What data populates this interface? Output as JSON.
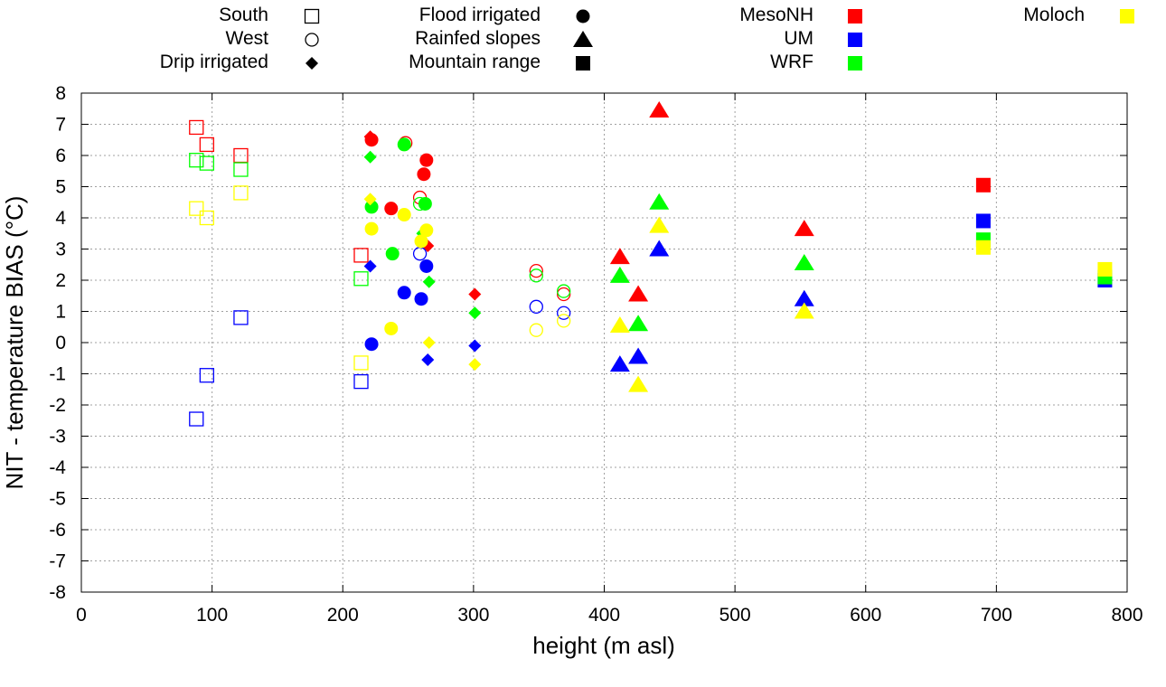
{
  "chart_data": {
    "type": "scatter",
    "title": "",
    "xlabel": "height (m asl)",
    "ylabel": "NIT - temperature BIAS (°C)",
    "xlim": [
      0,
      800
    ],
    "ylim": [
      -8,
      8
    ],
    "xticks": [
      0,
      100,
      200,
      300,
      400,
      500,
      600,
      700,
      800
    ],
    "yticks": [
      -8,
      -7,
      -6,
      -5,
      -4,
      -3,
      -2,
      -1,
      0,
      1,
      2,
      3,
      4,
      5,
      6,
      7,
      8
    ],
    "grid": true,
    "legend": {
      "placement": "top",
      "site_types": [
        {
          "key": "south",
          "label": "South",
          "marker": "open-square"
        },
        {
          "key": "west",
          "label": "West",
          "marker": "open-circle"
        },
        {
          "key": "drip",
          "label": "Drip irrigated",
          "marker": "diamond"
        },
        {
          "key": "flood",
          "label": "Flood irrigated",
          "marker": "circle"
        },
        {
          "key": "rainfed",
          "label": "Rainfed slopes",
          "marker": "triangle"
        },
        {
          "key": "mountain",
          "label": "Mountain range",
          "marker": "square"
        }
      ],
      "models": [
        {
          "key": "mesonh",
          "label": "MesoNH",
          "color": "#ff0000"
        },
        {
          "key": "um",
          "label": "UM",
          "color": "#0000ff"
        },
        {
          "key": "wrf",
          "label": "WRF",
          "color": "#00ff00"
        },
        {
          "key": "moloch",
          "label": "Moloch",
          "color": "#ffff00"
        }
      ]
    },
    "series": [
      {
        "name": "MesoNH",
        "color": "#ff0000",
        "points": [
          {
            "type": "south",
            "x": 88,
            "y": 6.9
          },
          {
            "type": "south",
            "x": 96,
            "y": 6.35
          },
          {
            "type": "south",
            "x": 122,
            "y": 6.0
          },
          {
            "type": "south",
            "x": 214,
            "y": 2.8
          },
          {
            "type": "west",
            "x": 248,
            "y": 6.4
          },
          {
            "type": "west",
            "x": 259,
            "y": 4.65
          },
          {
            "type": "west",
            "x": 348,
            "y": 2.3
          },
          {
            "type": "west",
            "x": 369,
            "y": 1.55
          },
          {
            "type": "drip",
            "x": 221,
            "y": 6.6
          },
          {
            "type": "drip",
            "x": 265,
            "y": 3.1
          },
          {
            "type": "drip",
            "x": 301,
            "y": 1.55
          },
          {
            "type": "flood",
            "x": 222,
            "y": 6.5
          },
          {
            "type": "flood",
            "x": 237,
            "y": 4.3
          },
          {
            "type": "flood",
            "x": 262,
            "y": 5.4
          },
          {
            "type": "flood",
            "x": 264,
            "y": 5.85
          },
          {
            "type": "rainfed",
            "x": 412,
            "y": 2.75
          },
          {
            "type": "rainfed",
            "x": 426,
            "y": 1.55
          },
          {
            "type": "rainfed",
            "x": 442,
            "y": 7.45
          },
          {
            "type": "rainfed",
            "x": 553,
            "y": 3.65
          },
          {
            "type": "mountain",
            "x": 690,
            "y": 5.05
          }
        ]
      },
      {
        "name": "UM",
        "color": "#0000ff",
        "points": [
          {
            "type": "south",
            "x": 88,
            "y": -2.45
          },
          {
            "type": "south",
            "x": 96,
            "y": -1.05
          },
          {
            "type": "south",
            "x": 122,
            "y": 0.8
          },
          {
            "type": "south",
            "x": 214,
            "y": -1.25
          },
          {
            "type": "west",
            "x": 259,
            "y": 2.85
          },
          {
            "type": "west",
            "x": 348,
            "y": 1.15
          },
          {
            "type": "west",
            "x": 369,
            "y": 0.95
          },
          {
            "type": "drip",
            "x": 221,
            "y": 2.45
          },
          {
            "type": "drip",
            "x": 265,
            "y": -0.55
          },
          {
            "type": "drip",
            "x": 301,
            "y": -0.1
          },
          {
            "type": "flood",
            "x": 222,
            "y": -0.05
          },
          {
            "type": "flood",
            "x": 247,
            "y": 1.6
          },
          {
            "type": "flood",
            "x": 260,
            "y": 1.4
          },
          {
            "type": "flood",
            "x": 264,
            "y": 2.45
          },
          {
            "type": "rainfed",
            "x": 412,
            "y": -0.7
          },
          {
            "type": "rainfed",
            "x": 426,
            "y": -0.45
          },
          {
            "type": "rainfed",
            "x": 442,
            "y": 3.0
          },
          {
            "type": "rainfed",
            "x": 553,
            "y": 1.4
          },
          {
            "type": "mountain",
            "x": 690,
            "y": 3.9
          },
          {
            "type": "mountain",
            "x": 783,
            "y": 2.0
          }
        ]
      },
      {
        "name": "WRF",
        "color": "#00ff00",
        "points": [
          {
            "type": "south",
            "x": 88,
            "y": 5.85
          },
          {
            "type": "south",
            "x": 96,
            "y": 5.75
          },
          {
            "type": "south",
            "x": 122,
            "y": 5.55
          },
          {
            "type": "south",
            "x": 214,
            "y": 2.05
          },
          {
            "type": "west",
            "x": 259,
            "y": 4.45
          },
          {
            "type": "west",
            "x": 348,
            "y": 2.15
          },
          {
            "type": "west",
            "x": 369,
            "y": 1.65
          },
          {
            "type": "drip",
            "x": 221,
            "y": 5.95
          },
          {
            "type": "drip",
            "x": 261,
            "y": 3.5
          },
          {
            "type": "drip",
            "x": 266,
            "y": 1.95
          },
          {
            "type": "drip",
            "x": 301,
            "y": 0.95
          },
          {
            "type": "flood",
            "x": 222,
            "y": 4.35
          },
          {
            "type": "flood",
            "x": 238,
            "y": 2.85
          },
          {
            "type": "flood",
            "x": 247,
            "y": 6.35
          },
          {
            "type": "flood",
            "x": 263,
            "y": 4.45
          },
          {
            "type": "rainfed",
            "x": 412,
            "y": 2.15
          },
          {
            "type": "rainfed",
            "x": 426,
            "y": 0.6
          },
          {
            "type": "rainfed",
            "x": 442,
            "y": 4.5
          },
          {
            "type": "rainfed",
            "x": 553,
            "y": 2.55
          },
          {
            "type": "mountain",
            "x": 690,
            "y": 3.3
          },
          {
            "type": "mountain",
            "x": 783,
            "y": 2.1
          }
        ]
      },
      {
        "name": "Moloch",
        "color": "#ffff00",
        "points": [
          {
            "type": "south",
            "x": 88,
            "y": 4.3
          },
          {
            "type": "south",
            "x": 96,
            "y": 4.0
          },
          {
            "type": "south",
            "x": 122,
            "y": 4.8
          },
          {
            "type": "south",
            "x": 214,
            "y": -0.65
          },
          {
            "type": "west",
            "x": 348,
            "y": 0.4
          },
          {
            "type": "west",
            "x": 369,
            "y": 0.7
          },
          {
            "type": "drip",
            "x": 221,
            "y": 4.6
          },
          {
            "type": "drip",
            "x": 266,
            "y": 0.0
          },
          {
            "type": "drip",
            "x": 301,
            "y": -0.7
          },
          {
            "type": "flood",
            "x": 222,
            "y": 3.65
          },
          {
            "type": "flood",
            "x": 237,
            "y": 0.45
          },
          {
            "type": "flood",
            "x": 247,
            "y": 4.1
          },
          {
            "type": "flood",
            "x": 260,
            "y": 3.25
          },
          {
            "type": "flood",
            "x": 264,
            "y": 3.6
          },
          {
            "type": "rainfed",
            "x": 412,
            "y": 0.55
          },
          {
            "type": "rainfed",
            "x": 426,
            "y": -1.35
          },
          {
            "type": "rainfed",
            "x": 442,
            "y": 3.75
          },
          {
            "type": "rainfed",
            "x": 553,
            "y": 1.0
          },
          {
            "type": "mountain",
            "x": 690,
            "y": 3.05
          },
          {
            "type": "mountain",
            "x": 783,
            "y": 2.35
          }
        ]
      }
    ]
  }
}
